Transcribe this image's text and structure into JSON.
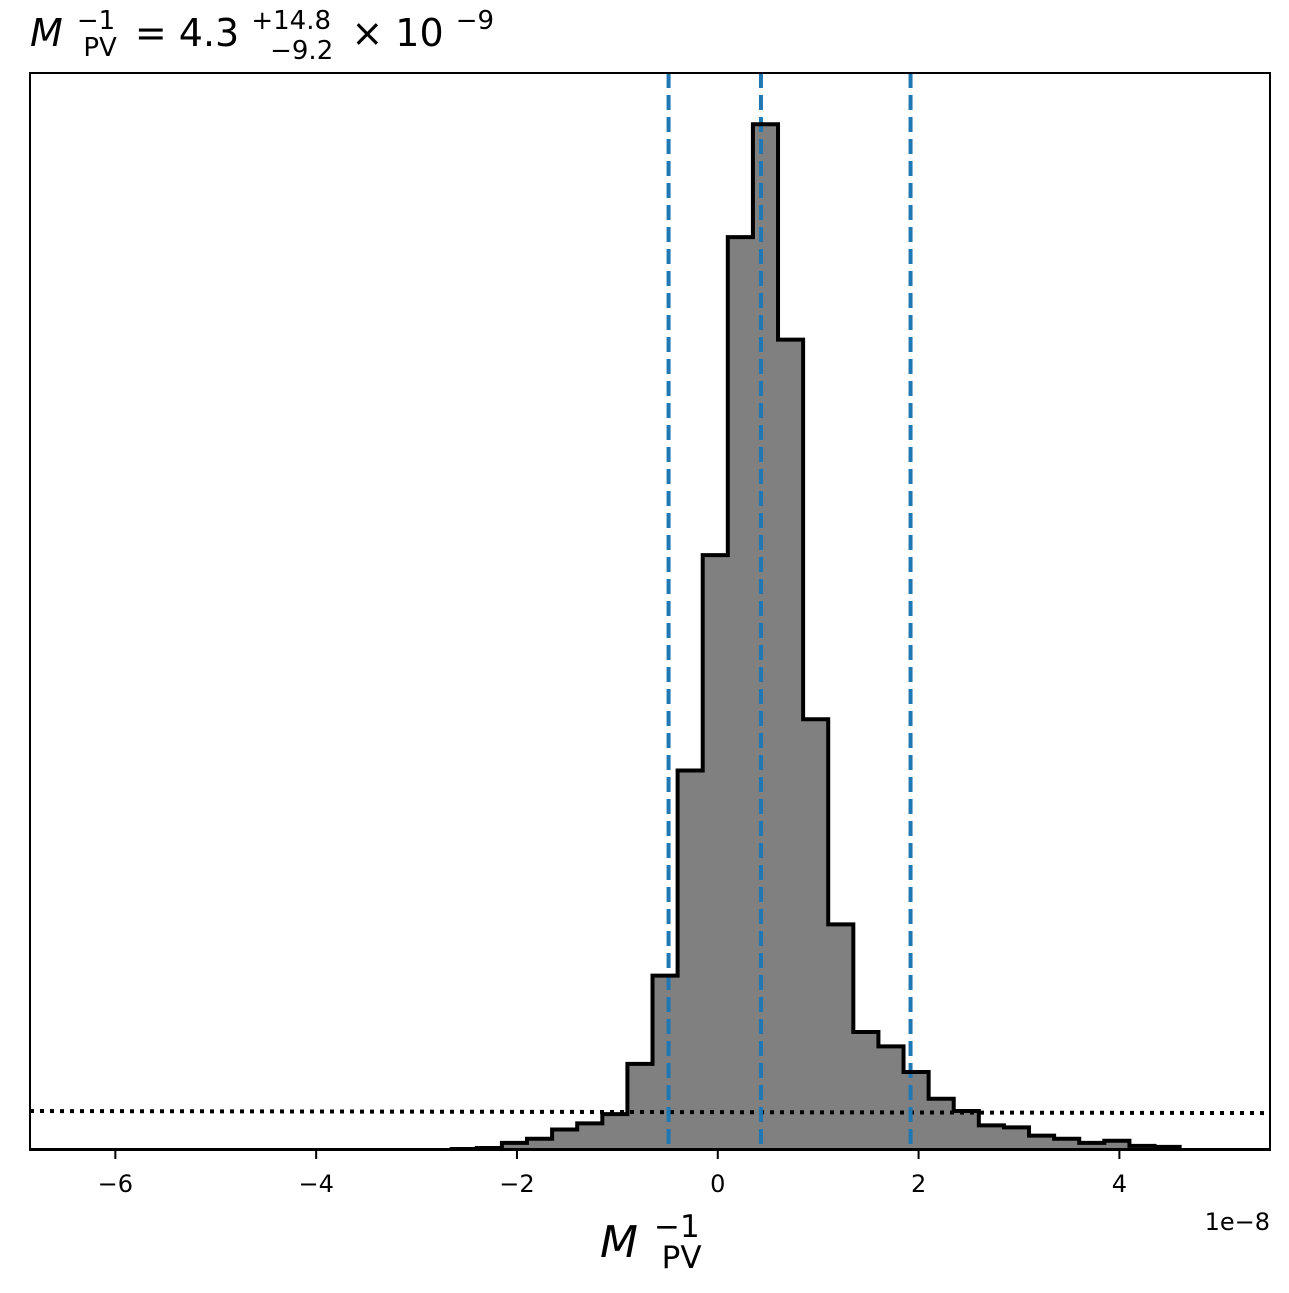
{
  "chart_data": {
    "type": "histogram",
    "title": {
      "symbol": "M",
      "symbol_sub": "PV",
      "symbol_sup": "−1",
      "equals": " = ",
      "median": "4.3",
      "err_plus": "+14.8",
      "err_minus": "−9.2",
      "times": " × 10",
      "exponent": "−9"
    },
    "xlabel": {
      "symbol": "M",
      "sub": "PV",
      "sup": "−1"
    },
    "offset_text": "1e−8",
    "xlim": [
      -6.85,
      5.5
    ],
    "ylim": [
      0,
      1.05
    ],
    "x_ticks": [
      -6,
      -4,
      -2,
      0,
      2,
      4
    ],
    "x_tick_labels": [
      "−6",
      "−4",
      "−2",
      "0",
      "2",
      "4"
    ],
    "bin_edges": [
      -2.65,
      -2.4,
      -2.15,
      -1.9,
      -1.65,
      -1.4,
      -1.15,
      -0.9,
      -0.65,
      -0.4,
      -0.15,
      0.1,
      0.35,
      0.6,
      0.85,
      1.1,
      1.35,
      1.6,
      1.85,
      2.1,
      2.35,
      2.6,
      2.85,
      3.1,
      3.35,
      3.6,
      3.85,
      4.1,
      4.35,
      4.6
    ],
    "counts": [
      0.001,
      0.002,
      0.007,
      0.011,
      0.02,
      0.026,
      0.035,
      0.084,
      0.17,
      0.37,
      0.58,
      0.89,
      1.0,
      0.79,
      0.42,
      0.22,
      0.115,
      0.101,
      0.076,
      0.05,
      0.038,
      0.024,
      0.022,
      0.014,
      0.011,
      0.007,
      0.009,
      0.004,
      0.003
    ],
    "vlines": [
      {
        "x": -0.49,
        "label": "lower"
      },
      {
        "x": 0.43,
        "label": "median"
      },
      {
        "x": 1.92,
        "label": "upper"
      }
    ],
    "prior_line": {
      "x": [
        -6.85,
        5.5
      ],
      "y": [
        0.038,
        0.036
      ]
    },
    "colors": {
      "fill": "#808080",
      "edge": "#000000",
      "vline": "#1f77b4",
      "prior": "#000000"
    },
    "grid": false,
    "y_ticks_shown": false
  }
}
